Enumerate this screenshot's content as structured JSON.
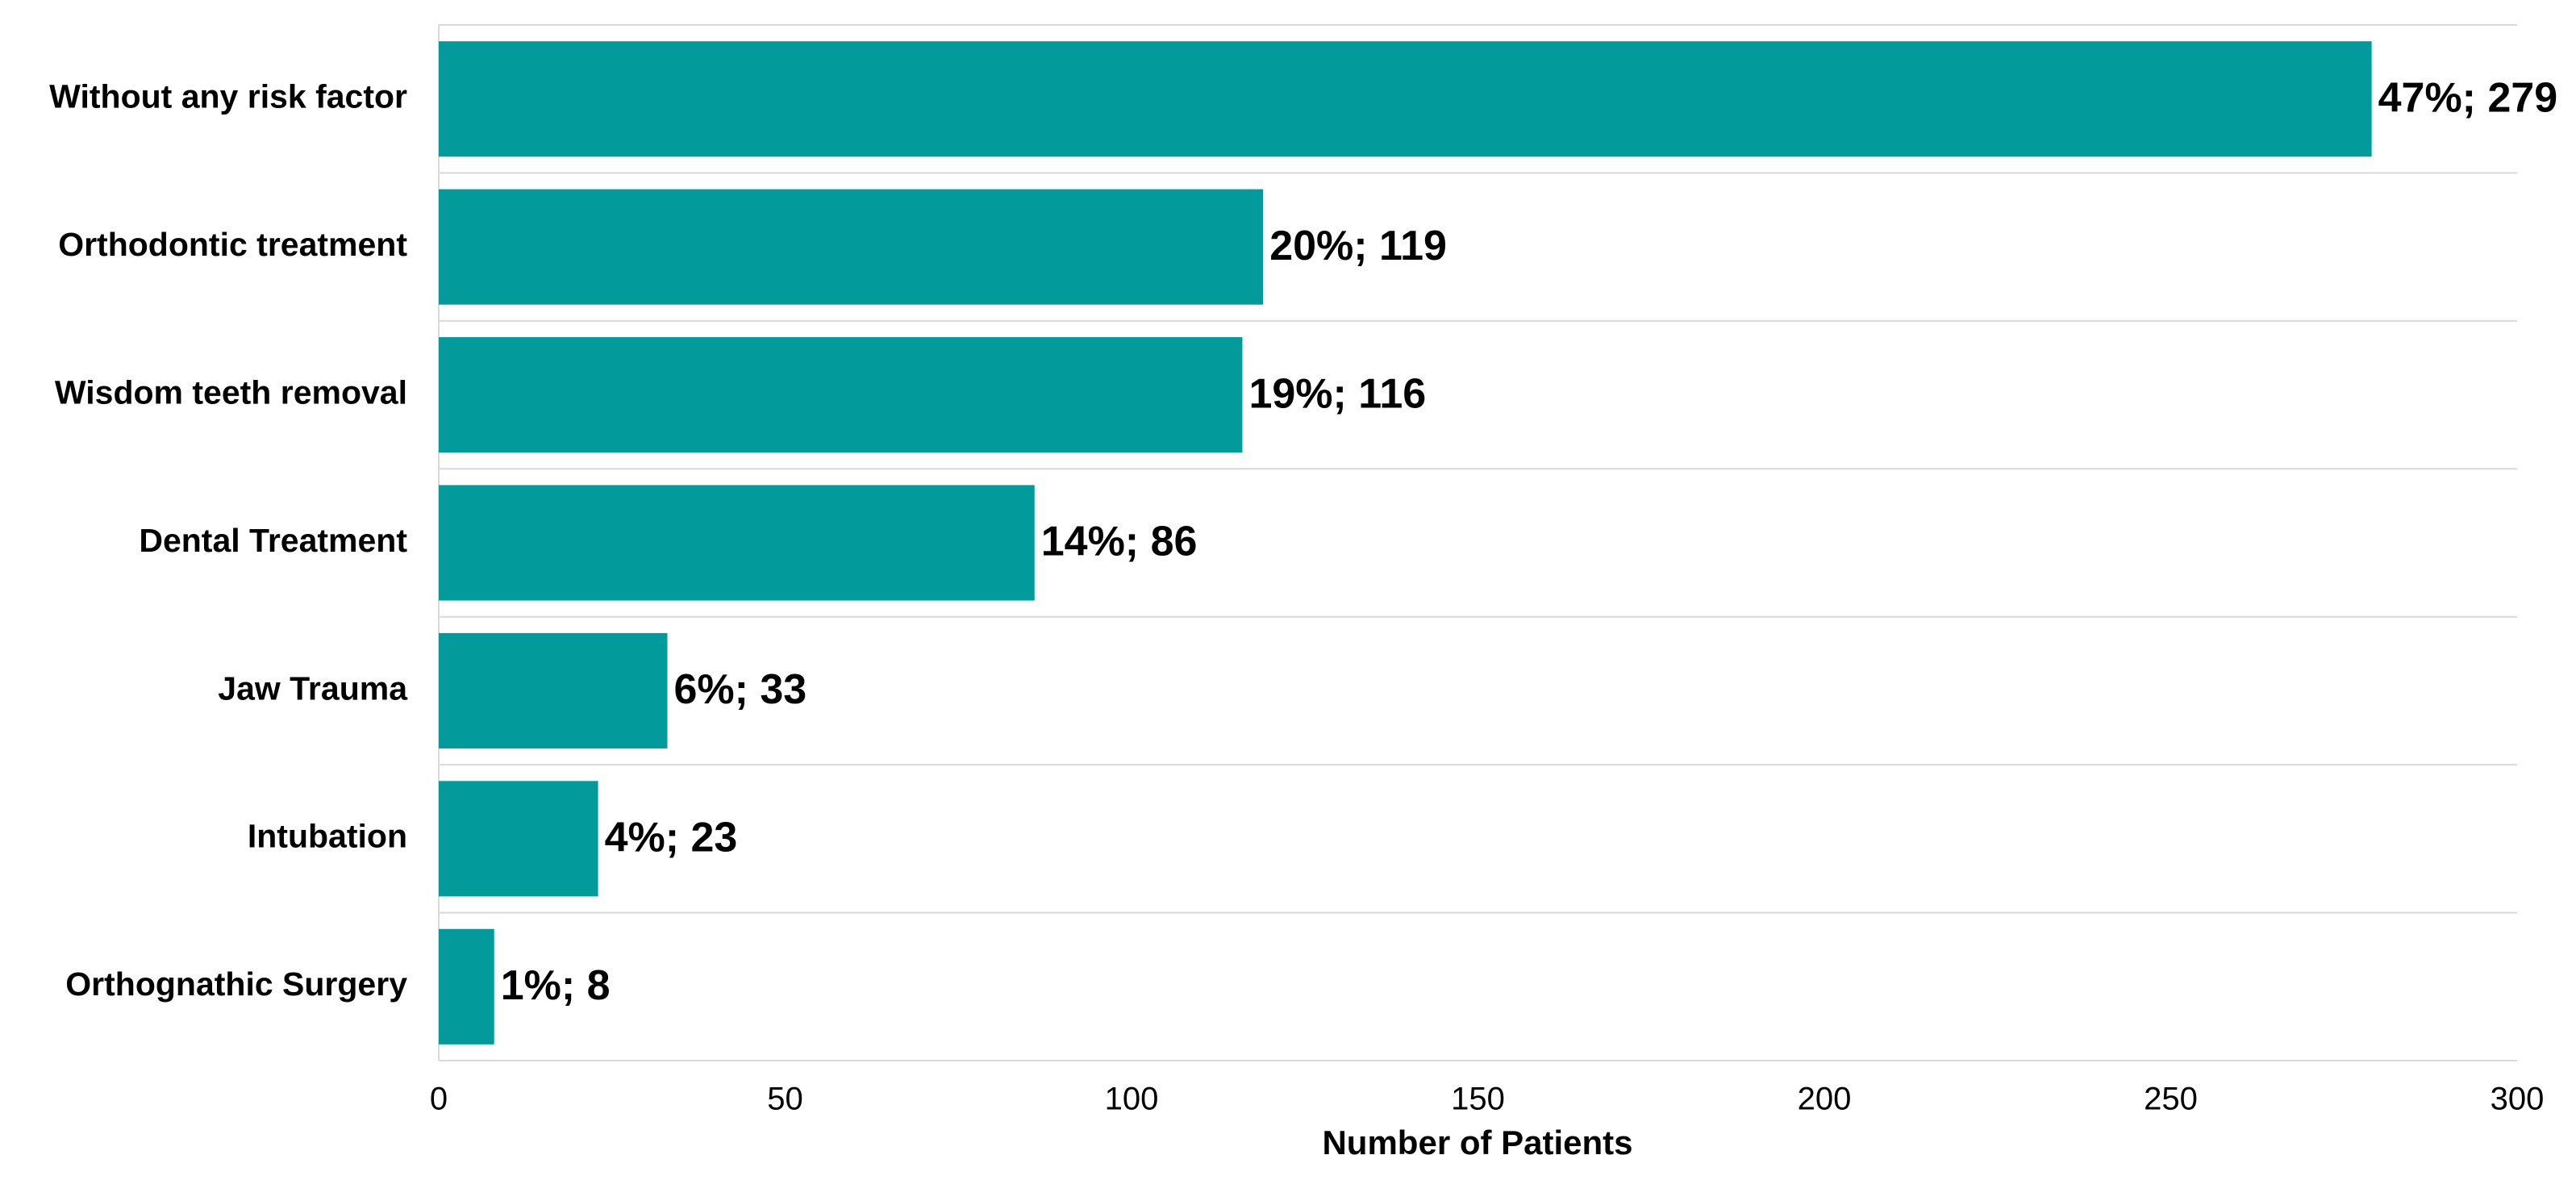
{
  "chart_data": {
    "type": "bar",
    "orientation": "horizontal",
    "categories": [
      "Without any risk factor",
      "Orthodontic treatment",
      "Wisdom teeth removal",
      "Dental Treatment",
      "Jaw Trauma",
      "Intubation",
      "Orthognathic Surgery"
    ],
    "values": [
      279,
      119,
      116,
      86,
      33,
      23,
      8
    ],
    "value_labels": [
      "47%; 279",
      "20%; 119",
      "19%; 116",
      "14%; 86",
      "6%; 33",
      "4%; 23",
      "1%; 8"
    ],
    "color": "#029a9a",
    "x_label": "Number of Patients",
    "xlim": [
      0,
      300
    ],
    "xticks": [
      0,
      50,
      100,
      150,
      200,
      250,
      300
    ]
  }
}
